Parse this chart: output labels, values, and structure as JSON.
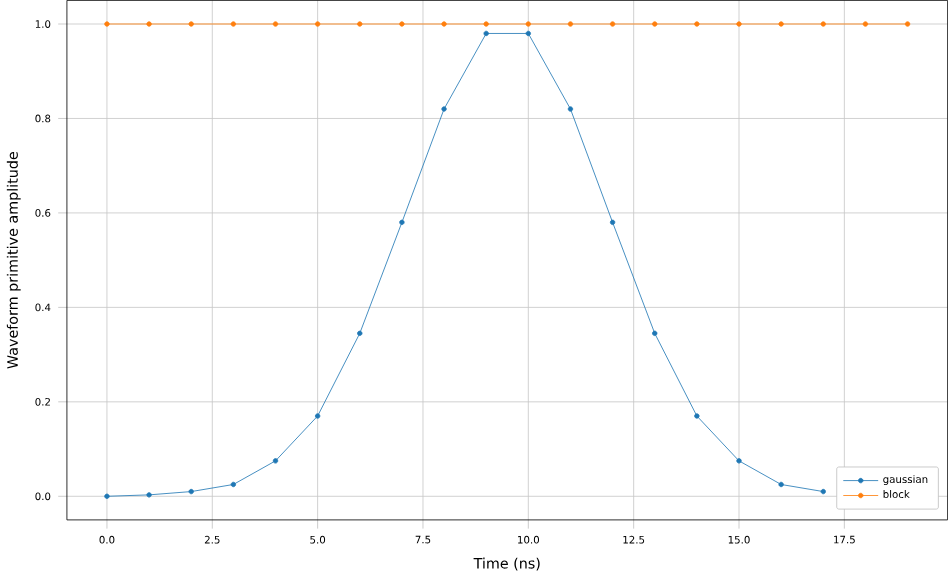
{
  "chart_data": {
    "type": "line",
    "xlabel": "Time (ns)",
    "ylabel": "Waveform primitive amplitude",
    "x": [
      0,
      1,
      2,
      3,
      4,
      5,
      6,
      7,
      8,
      9,
      10,
      11,
      12,
      13,
      14,
      15,
      16,
      17,
      18,
      19
    ],
    "series": [
      {
        "name": "gaussian",
        "color": "#1f77b4",
        "values": [
          0,
          0.003,
          0.01,
          0.025,
          0.075,
          0.17,
          0.345,
          0.58,
          0.82,
          0.98,
          0.98,
          0.82,
          0.58,
          0.345,
          0.17,
          0.075,
          0.025,
          0.01,
          null,
          null
        ]
      },
      {
        "name": "block",
        "color": "#ff7f0e",
        "values": [
          1,
          1,
          1,
          1,
          1,
          1,
          1,
          1,
          1,
          1,
          1,
          1,
          1,
          1,
          1,
          1,
          1,
          1,
          1,
          1
        ]
      }
    ],
    "xlim": [
      -0.95,
      19.95
    ],
    "ylim": [
      -0.05,
      1.05
    ],
    "xticks": [
      {
        "value": 0,
        "label": "0.0"
      },
      {
        "value": 2.5,
        "label": "2.5"
      },
      {
        "value": 5,
        "label": "5.0"
      },
      {
        "value": 7.5,
        "label": "7.5"
      },
      {
        "value": 10,
        "label": "10.0"
      },
      {
        "value": 12.5,
        "label": "12.5"
      },
      {
        "value": 15,
        "label": "15.0"
      },
      {
        "value": 17.5,
        "label": "17.5"
      }
    ],
    "yticks": [
      {
        "value": 0,
        "label": "0.0"
      },
      {
        "value": 0.2,
        "label": "0.2"
      },
      {
        "value": 0.4,
        "label": "0.4"
      },
      {
        "value": 0.6,
        "label": "0.6"
      },
      {
        "value": 0.8,
        "label": "0.8"
      },
      {
        "value": 1.0,
        "label": "1.0"
      }
    ],
    "grid": true,
    "legend": "bottom right",
    "marker": "circle",
    "line_style": "solid"
  }
}
